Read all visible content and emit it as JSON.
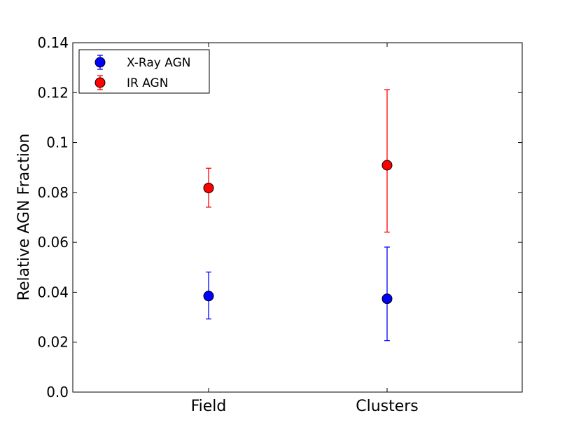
{
  "chart_data": {
    "type": "scatter",
    "title": "",
    "xlabel": "",
    "ylabel": "Relative AGN Fraction",
    "categories": [
      "Field",
      "Clusters"
    ],
    "ylim": [
      0.0,
      0.14
    ],
    "y_ticks": [
      "0.0",
      "0.02",
      "0.04",
      "0.06",
      "0.08",
      "0.1",
      "0.12",
      "0.14"
    ],
    "grid": false,
    "legend_position": "top-left",
    "series": [
      {
        "name": "X-Ray AGN",
        "color": "#0000ff",
        "points": [
          {
            "category": "Field",
            "y": 0.0385,
            "y_err_low": 0.0293,
            "y_err_high": 0.0481
          },
          {
            "category": "Clusters",
            "y": 0.0374,
            "y_err_low": 0.0206,
            "y_err_high": 0.0581
          }
        ]
      },
      {
        "name": "IR AGN",
        "color": "#ff0000",
        "points": [
          {
            "category": "Field",
            "y": 0.0818,
            "y_err_low": 0.0741,
            "y_err_high": 0.0897
          },
          {
            "category": "Clusters",
            "y": 0.0909,
            "y_err_low": 0.0641,
            "y_err_high": 0.1212
          }
        ]
      }
    ]
  }
}
